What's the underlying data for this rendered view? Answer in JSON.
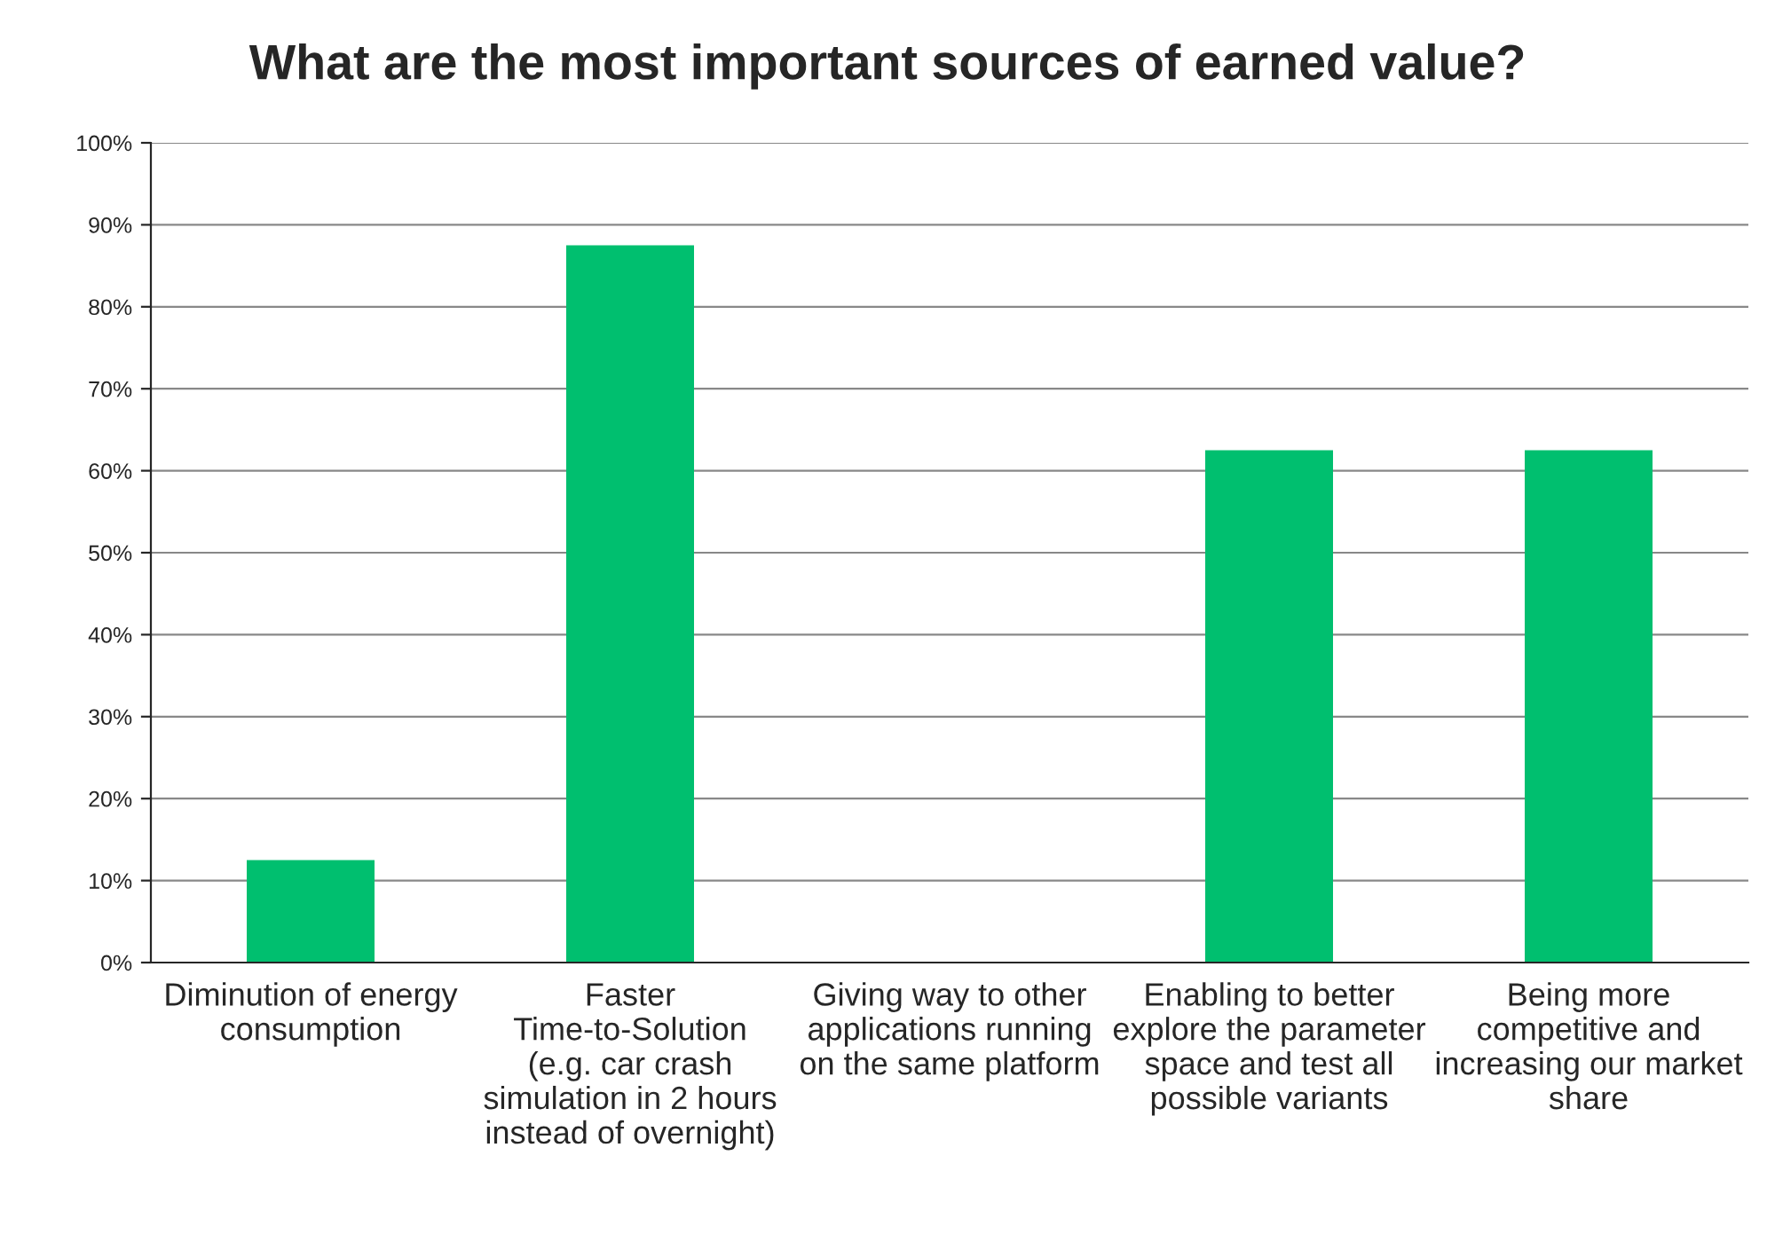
{
  "chart_data": {
    "type": "bar",
    "title": "What are the most important sources of earned value?",
    "categories": [
      "Diminution of energy consumption",
      "Faster Time-to-Solution (e.g. car crash simulation in 2 hours instead of overnight)",
      "Giving way to other applications running on the same platform",
      "Enabling to better explore the parameter space and test all possible variants",
      "Being more competitive and increasing our market share"
    ],
    "values": [
      12.5,
      87.5,
      0,
      62.5,
      62.5
    ],
    "color": "#00bf6f",
    "ylim": [
      0,
      100
    ],
    "yticks": [
      {
        "value": 0,
        "label": "0%"
      },
      {
        "value": 10,
        "label": "10%"
      },
      {
        "value": 20,
        "label": "20%"
      },
      {
        "value": 30,
        "label": "30%"
      },
      {
        "value": 40,
        "label": "40%"
      },
      {
        "value": 50,
        "label": "50%"
      },
      {
        "value": 60,
        "label": "60%"
      },
      {
        "value": 70,
        "label": "70%"
      },
      {
        "value": 80,
        "label": "80%"
      },
      {
        "value": 90,
        "label": "90%"
      },
      {
        "value": 100,
        "label": "100%"
      }
    ],
    "grid": "y"
  }
}
